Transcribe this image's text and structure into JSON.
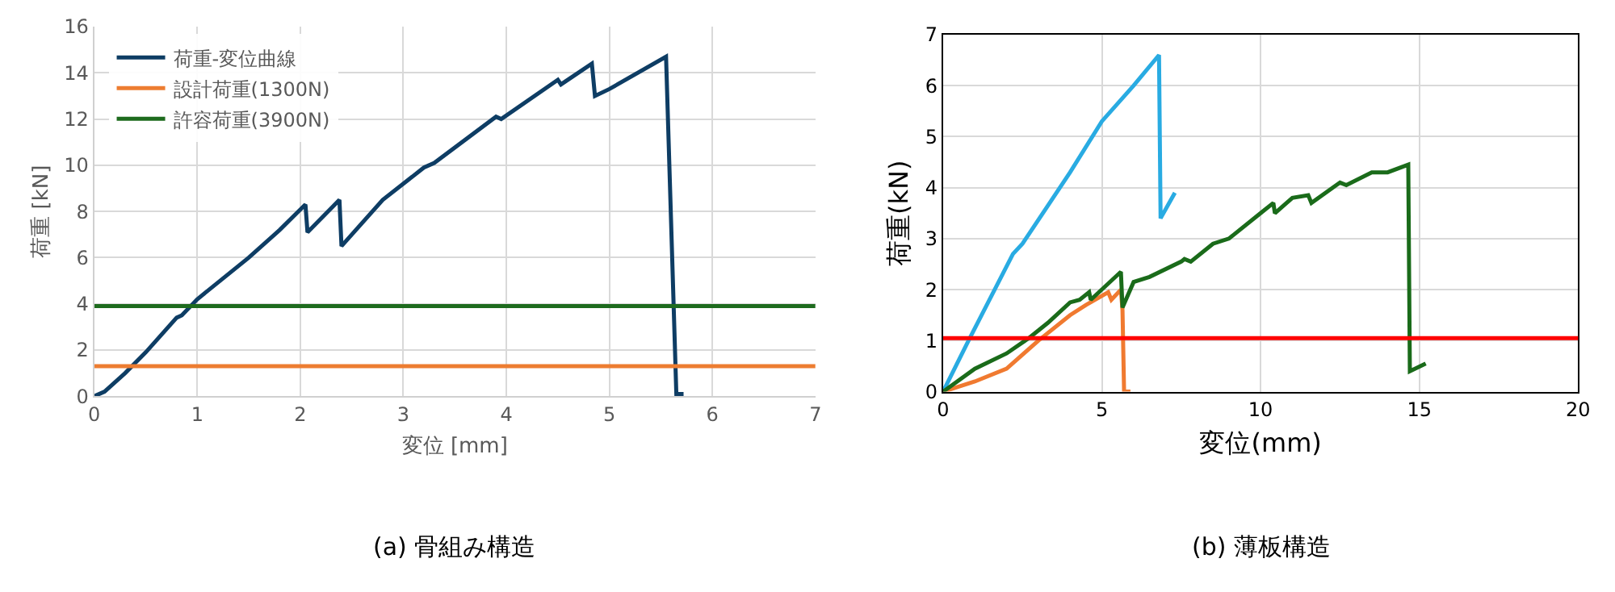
{
  "chart_data": [
    {
      "type": "line",
      "xlabel": "変位 [mm]",
      "ylabel": "荷重 [kN]",
      "xlim": [
        0,
        7
      ],
      "xticks": [
        0,
        1,
        2,
        3,
        4,
        5,
        6,
        7
      ],
      "ylim": [
        0,
        16
      ],
      "yticks": [
        0,
        2,
        4,
        6,
        8,
        10,
        12,
        14,
        16
      ],
      "grid": true,
      "legend": "top left",
      "annotations": [
        "(a) 骨組み構造"
      ],
      "series": [
        {
          "name": "荷重-変位曲線",
          "color": "#0e3d64",
          "x": [
            0,
            0.1,
            0.3,
            0.5,
            0.8,
            0.85,
            1.0,
            1.5,
            1.75,
            1.8,
            2.05,
            2.07,
            2.38,
            2.4,
            2.8,
            3.2,
            3.3,
            3.9,
            3.95,
            4.5,
            4.53,
            4.83,
            4.86,
            5.0,
            5.55,
            5.65,
            5.72
          ],
          "values": [
            0,
            0.2,
            1.0,
            1.9,
            3.4,
            3.5,
            4.2,
            6.0,
            7.0,
            7.2,
            8.3,
            7.1,
            8.5,
            6.5,
            8.5,
            9.9,
            10.1,
            12.1,
            12.0,
            13.7,
            13.5,
            14.4,
            13.0,
            13.3,
            14.7,
            0.1,
            0.1
          ]
        },
        {
          "name": "設計荷重(1300N)",
          "color": "#ed7d31",
          "x": [
            0,
            7
          ],
          "values": [
            1.3,
            1.3
          ]
        },
        {
          "name": "許容荷重(3900N)",
          "color": "#1e6b1e",
          "x": [
            0,
            7
          ],
          "values": [
            3.9,
            3.9
          ]
        }
      ]
    },
    {
      "type": "line",
      "xlabel": "変位(mm)",
      "ylabel": "荷重(kN)",
      "xlim": [
        0,
        20
      ],
      "xticks": [
        0,
        5,
        10,
        15,
        20
      ],
      "ylim": [
        0,
        7
      ],
      "yticks": [
        0,
        1,
        2,
        3,
        4,
        5,
        6,
        7
      ],
      "grid": true,
      "annotations": [
        "(b) 薄板構造"
      ],
      "ref_lines": [
        {
          "axis": "y",
          "value": 1.05,
          "color": "#ff0000"
        }
      ],
      "series": [
        {
          "color": "#29abe2",
          "x": [
            0,
            0.8,
            2.2,
            2.5,
            4,
            5,
            6,
            6.8,
            6.85,
            7.3
          ],
          "values": [
            0,
            1.0,
            2.7,
            2.9,
            4.3,
            5.3,
            6.0,
            6.6,
            3.4,
            3.9
          ]
        },
        {
          "color": "#f07a30",
          "x": [
            0,
            1,
            2,
            3,
            4,
            4.5,
            5.2,
            5.3,
            5.6,
            5.65,
            5.7,
            5.9
          ],
          "values": [
            0,
            0.2,
            0.45,
            1.0,
            1.5,
            1.7,
            1.95,
            1.8,
            2.0,
            1.6,
            0,
            0
          ]
        },
        {
          "color": "#1a6b1a",
          "x": [
            0,
            1,
            2,
            2.7,
            3.3,
            4,
            4.3,
            4.6,
            4.65,
            5.6,
            5.65,
            6,
            6.5,
            7.5,
            7.6,
            7.8,
            8.5,
            9,
            10,
            10.4,
            10.45,
            11,
            11.5,
            11.6,
            12.5,
            12.7,
            13.5,
            14,
            14.65,
            14.7,
            15.2
          ],
          "values": [
            0,
            0.45,
            0.75,
            1.05,
            1.35,
            1.75,
            1.8,
            1.95,
            1.8,
            2.35,
            1.65,
            2.15,
            2.25,
            2.55,
            2.6,
            2.55,
            2.9,
            3.0,
            3.5,
            3.7,
            3.5,
            3.8,
            3.85,
            3.7,
            4.1,
            4.05,
            4.3,
            4.3,
            4.45,
            0.4,
            0.55
          ]
        }
      ]
    }
  ]
}
